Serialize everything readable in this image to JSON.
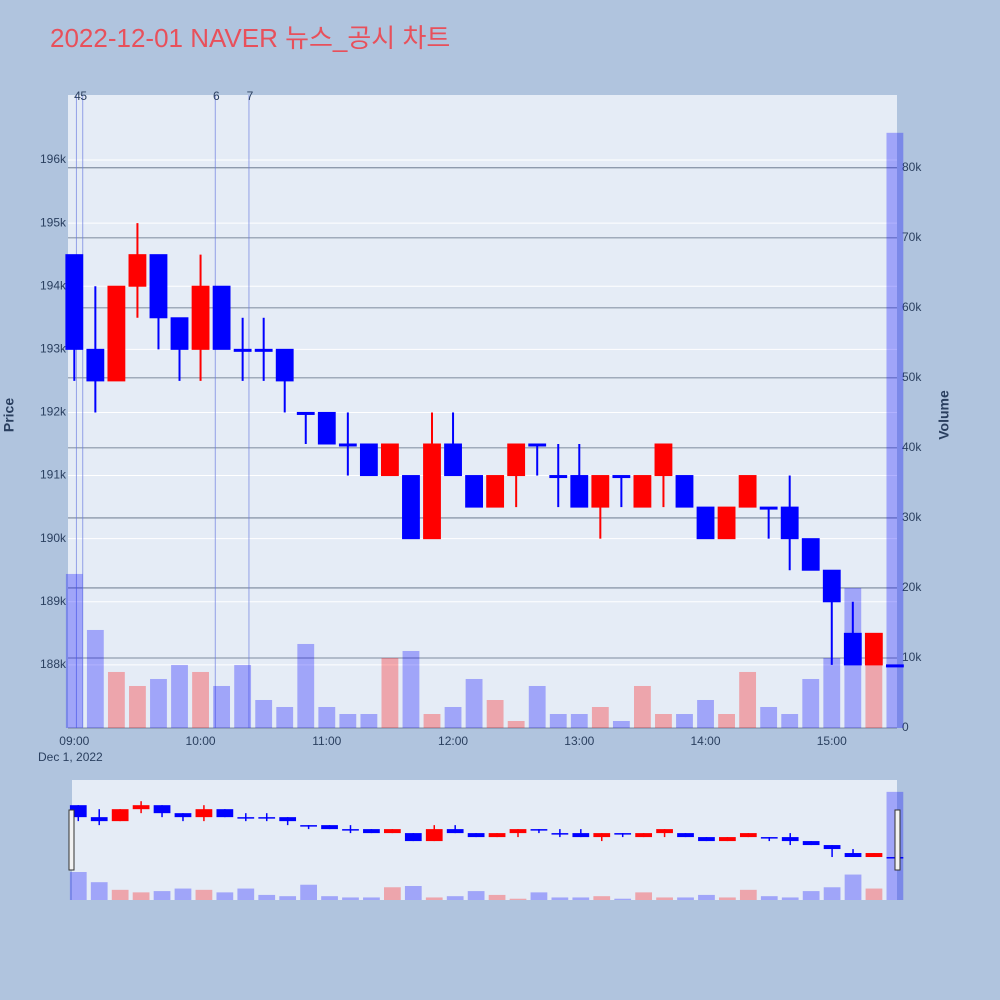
{
  "chart_data": {
    "type": "candlestick",
    "title": "2022-12-01 NAVER 뉴스_공시 차트",
    "ylabel": "Price",
    "y2label": "Volume",
    "x_date_label": "Dec 1, 2022",
    "increasing_color": "#ff0000",
    "decreasing_color": "#0000ff",
    "xlim": [
      "08:57",
      "15:31"
    ],
    "xticks": [
      "09:00",
      "10:00",
      "11:00",
      "12:00",
      "13:00",
      "14:00",
      "15:00"
    ],
    "ylim": [
      187000,
      197030
    ],
    "yticks": [
      {
        "value": 188000,
        "label": "188k"
      },
      {
        "value": 189000,
        "label": "189k"
      },
      {
        "value": 190000,
        "label": "190k"
      },
      {
        "value": 191000,
        "label": "191k"
      },
      {
        "value": 192000,
        "label": "192k"
      },
      {
        "value": 193000,
        "label": "193k"
      },
      {
        "value": 194000,
        "label": "194k"
      },
      {
        "value": 195000,
        "label": "195k"
      },
      {
        "value": 196000,
        "label": "196k"
      }
    ],
    "y2lim": [
      0,
      90400
    ],
    "y2ticks": [
      0,
      {
        "value": 10000,
        "label": "10k"
      },
      {
        "value": 20000,
        "label": "20k"
      },
      {
        "value": 30000,
        "label": "30k"
      },
      {
        "value": 40000,
        "label": "40k"
      },
      {
        "value": 50000,
        "label": "50k"
      },
      {
        "value": 60000,
        "label": "60k"
      },
      {
        "value": 70000,
        "label": "70k"
      },
      {
        "value": 80000,
        "label": "80k"
      }
    ],
    "annotations": [
      {
        "x": "09:01",
        "label": "4"
      },
      {
        "x": "09:04",
        "label": "5"
      },
      {
        "x": "10:07",
        "label": "6"
      },
      {
        "x": "10:23",
        "label": "7"
      }
    ],
    "x": [
      "09:00",
      "09:10",
      "09:20",
      "09:30",
      "09:40",
      "09:50",
      "10:00",
      "10:10",
      "10:20",
      "10:30",
      "10:40",
      "10:50",
      "11:00",
      "11:10",
      "11:20",
      "11:30",
      "11:40",
      "11:50",
      "12:00",
      "12:10",
      "12:20",
      "12:30",
      "12:40",
      "12:50",
      "13:00",
      "13:10",
      "13:20",
      "13:30",
      "13:40",
      "13:50",
      "14:00",
      "14:10",
      "14:20",
      "14:30",
      "14:40",
      "14:50",
      "15:00",
      "15:10",
      "15:20",
      "15:30"
    ],
    "open": [
      194500,
      193000,
      192500,
      194000,
      194500,
      193500,
      193000,
      194000,
      193000,
      193000,
      193000,
      192000,
      192000,
      191500,
      191500,
      191000,
      191000,
      190000,
      191500,
      191000,
      190500,
      191000,
      191500,
      191000,
      191000,
      190500,
      191000,
      190500,
      191000,
      191000,
      190500,
      190000,
      190500,
      190500,
      190500,
      190000,
      189500,
      188500,
      188000,
      188000
    ],
    "high": [
      194500,
      194000,
      194000,
      195000,
      194500,
      193500,
      194500,
      194000,
      193500,
      193500,
      193000,
      192000,
      192000,
      192000,
      191500,
      191500,
      191000,
      192000,
      192000,
      191000,
      191000,
      191500,
      191500,
      191500,
      191500,
      191000,
      191000,
      191000,
      191500,
      191000,
      190500,
      190500,
      191000,
      190500,
      191000,
      190000,
      189500,
      189000,
      188500,
      188000
    ],
    "low": [
      192500,
      192000,
      192500,
      193500,
      193000,
      192500,
      192500,
      193000,
      192500,
      192500,
      192000,
      191500,
      191500,
      191000,
      191000,
      191000,
      190000,
      190000,
      191000,
      190500,
      190500,
      190500,
      191000,
      190500,
      190500,
      190000,
      190500,
      190500,
      190500,
      190500,
      190000,
      190000,
      190500,
      190000,
      189500,
      189500,
      188000,
      188000,
      188000,
      188000
    ],
    "close": [
      193000,
      192500,
      194000,
      194500,
      193500,
      193000,
      194000,
      193000,
      193000,
      193000,
      192500,
      192000,
      191500,
      191500,
      191000,
      191500,
      190000,
      191500,
      191000,
      190500,
      191000,
      191500,
      191500,
      191000,
      190500,
      191000,
      191000,
      191000,
      191500,
      190500,
      190000,
      190500,
      191000,
      190500,
      190000,
      189500,
      189000,
      188000,
      188500,
      188000
    ],
    "volume": [
      22000,
      14000,
      8000,
      6000,
      7000,
      9000,
      8000,
      6000,
      9000,
      4000,
      3000,
      12000,
      3000,
      2000,
      2000,
      10000,
      11000,
      2000,
      3000,
      7000,
      4000,
      1000,
      6000,
      2000,
      2000,
      3000,
      1000,
      6000,
      2000,
      2000,
      4000,
      2000,
      8000,
      3000,
      2000,
      7000,
      10000,
      20000,
      9000,
      85000
    ]
  }
}
